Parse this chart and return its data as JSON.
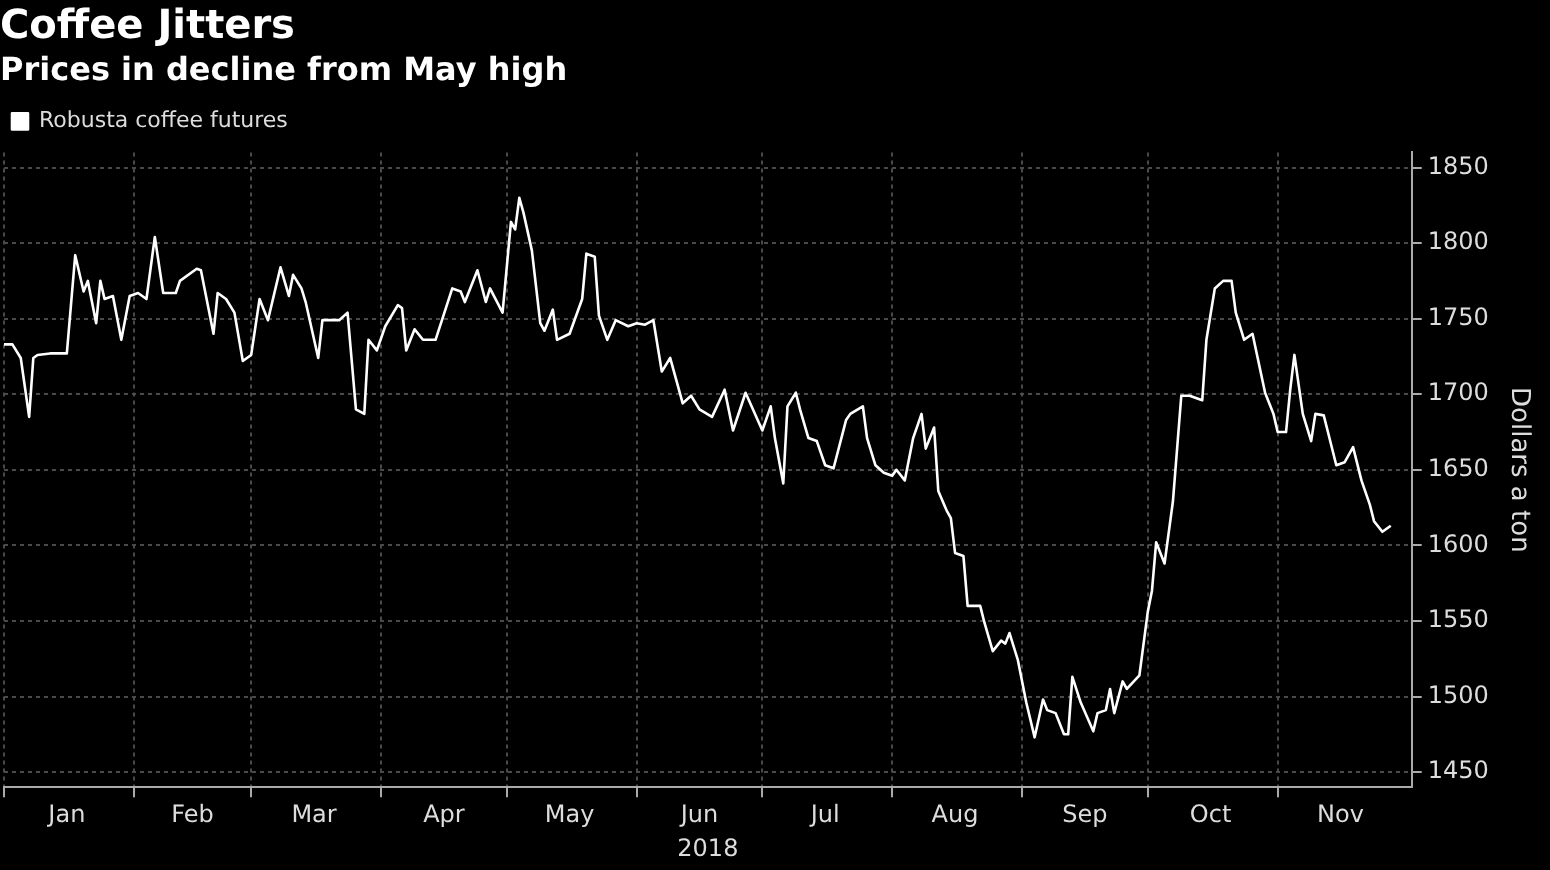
{
  "chart_data": {
    "type": "line",
    "title": "Coffee Jitters",
    "subtitle": "Prices in decline from May high",
    "ylabel": "Dollars a ton",
    "annotations": [
      "2018"
    ],
    "x": [
      "2018-01-01",
      "2018-01-03",
      "2018-01-05",
      "2018-01-07",
      "2018-01-08",
      "2018-01-09",
      "2018-01-12",
      "2018-01-16",
      "2018-01-18",
      "2018-01-20",
      "2018-01-21",
      "2018-01-23",
      "2018-01-24",
      "2018-01-25",
      "2018-01-27",
      "2018-01-29",
      "2018-01-31",
      "2018-02-02",
      "2018-02-04",
      "2018-02-06",
      "2018-02-08",
      "2018-02-11",
      "2018-02-12",
      "2018-02-16",
      "2018-02-17",
      "2018-02-20",
      "2018-02-21",
      "2018-02-23",
      "2018-02-25",
      "2018-02-27",
      "2018-03-01",
      "2018-03-03",
      "2018-03-05",
      "2018-03-08",
      "2018-03-10",
      "2018-03-11",
      "2018-03-13",
      "2018-03-14",
      "2018-03-17",
      "2018-03-18",
      "2018-03-22",
      "2018-03-24",
      "2018-03-26",
      "2018-03-28",
      "2018-03-29",
      "2018-03-31",
      "2018-04-02",
      "2018-04-05",
      "2018-04-06",
      "2018-04-07",
      "2018-04-09",
      "2018-04-11",
      "2018-04-14",
      "2018-04-18",
      "2018-04-20",
      "2018-04-21",
      "2018-04-24",
      "2018-04-26",
      "2018-04-27",
      "2018-04-30",
      "2018-05-02",
      "2018-05-03",
      "2018-05-04",
      "2018-05-05",
      "2018-05-07",
      "2018-05-09",
      "2018-05-10",
      "2018-05-12",
      "2018-05-13",
      "2018-05-16",
      "2018-05-19",
      "2018-05-20",
      "2018-05-22",
      "2018-05-23",
      "2018-05-25",
      "2018-05-27",
      "2018-05-30",
      "2018-06-01",
      "2018-06-03",
      "2018-06-05",
      "2018-06-07",
      "2018-06-09",
      "2018-06-12",
      "2018-06-14",
      "2018-06-16",
      "2018-06-19",
      "2018-06-22",
      "2018-06-24",
      "2018-06-27",
      "2018-07-01",
      "2018-07-03",
      "2018-07-04",
      "2018-07-06",
      "2018-07-07",
      "2018-07-09",
      "2018-07-10",
      "2018-07-12",
      "2018-07-14",
      "2018-07-16",
      "2018-07-18",
      "2018-07-21",
      "2018-07-22",
      "2018-07-25",
      "2018-07-26",
      "2018-07-28",
      "2018-07-30",
      "2018-08-01",
      "2018-08-02",
      "2018-08-04",
      "2018-08-06",
      "2018-08-08",
      "2018-08-09",
      "2018-08-11",
      "2018-08-12",
      "2018-08-14",
      "2018-08-15",
      "2018-08-16",
      "2018-08-18",
      "2018-08-19",
      "2018-08-22",
      "2018-08-23",
      "2018-08-25",
      "2018-08-27",
      "2018-08-28",
      "2018-08-29",
      "2018-08-31",
      "2018-09-02",
      "2018-09-04",
      "2018-09-06",
      "2018-09-07",
      "2018-09-09",
      "2018-09-11",
      "2018-09-12",
      "2018-09-13",
      "2018-09-15",
      "2018-09-18",
      "2018-09-19",
      "2018-09-21",
      "2018-09-22",
      "2018-09-23",
      "2018-09-25",
      "2018-09-26",
      "2018-09-29",
      "2018-10-01",
      "2018-10-02",
      "2018-10-03",
      "2018-10-05",
      "2018-10-07",
      "2018-10-09",
      "2018-10-11",
      "2018-10-14",
      "2018-10-15",
      "2018-10-17",
      "2018-10-19",
      "2018-10-21",
      "2018-10-22",
      "2018-10-24",
      "2018-10-26",
      "2018-10-29",
      "2018-10-31",
      "2018-11-01",
      "2018-11-03",
      "2018-11-04",
      "2018-11-05",
      "2018-11-07",
      "2018-11-09",
      "2018-11-10",
      "2018-11-12",
      "2018-11-15",
      "2018-11-17",
      "2018-11-19",
      "2018-11-21",
      "2018-11-23",
      "2018-11-24",
      "2018-11-26",
      "2018-11-28"
    ],
    "series": [
      {
        "name": "Robusta coffee futures",
        "color": "#ffffff",
        "values": [
          1733,
          1733,
          1724,
          1685,
          1724,
          1726,
          1727,
          1727,
          1792,
          1768,
          1775,
          1747,
          1775,
          1763,
          1765,
          1736,
          1765,
          1767,
          1763,
          1804,
          1767,
          1767,
          1775,
          1783,
          1782,
          1740,
          1767,
          1763,
          1754,
          1722,
          1726,
          1763,
          1749,
          1784,
          1765,
          1779,
          1770,
          1761,
          1724,
          1749,
          1749,
          1754,
          1690,
          1687,
          1736,
          1729,
          1745,
          1759,
          1757,
          1729,
          1743,
          1736,
          1736,
          1770,
          1768,
          1761,
          1782,
          1761,
          1770,
          1754,
          1814,
          1809,
          1830,
          1820,
          1795,
          1747,
          1742,
          1756,
          1736,
          1740,
          1763,
          1793,
          1791,
          1752,
          1736,
          1749,
          1745,
          1747,
          1746,
          1749,
          1715,
          1724,
          1694,
          1699,
          1690,
          1685,
          1703,
          1676,
          1701,
          1676,
          1692,
          1671,
          1641,
          1692,
          1701,
          1690,
          1671,
          1669,
          1653,
          1651,
          1683,
          1687,
          1692,
          1671,
          1653,
          1648,
          1646,
          1650,
          1643,
          1671,
          1687,
          1664,
          1678,
          1636,
          1623,
          1618,
          1595,
          1593,
          1560,
          1560,
          1549,
          1530,
          1537,
          1535,
          1542,
          1524,
          1496,
          1473,
          1498,
          1491,
          1489,
          1475,
          1475,
          1513,
          1496,
          1477,
          1489,
          1491,
          1505,
          1489,
          1510,
          1505,
          1514,
          1556,
          1570,
          1602,
          1588,
          1629,
          1699,
          1699,
          1696,
          1736,
          1770,
          1775,
          1775,
          1754,
          1736,
          1740,
          1701,
          1687,
          1675,
          1675,
          1703,
          1726,
          1687,
          1669,
          1687,
          1686,
          1653,
          1655,
          1665,
          1643,
          1627,
          1616,
          1609,
          1613
        ]
      }
    ],
    "xlim": [
      "2018-01-01",
      "2018-12-03"
    ],
    "xticks": [
      {
        "value": "2018-01-01",
        "label": null
      },
      {
        "value": "2018-01-16",
        "label": "Jan"
      },
      {
        "value": "2018-02-01",
        "label": null
      },
      {
        "value": "2018-02-15",
        "label": "Feb"
      },
      {
        "value": "2018-03-01",
        "label": null
      },
      {
        "value": "2018-03-16",
        "label": "Mar"
      },
      {
        "value": "2018-04-01",
        "label": null
      },
      {
        "value": "2018-04-16",
        "label": "Apr"
      },
      {
        "value": "2018-05-01",
        "label": null
      },
      {
        "value": "2018-05-16",
        "label": "May"
      },
      {
        "value": "2018-06-01",
        "label": null
      },
      {
        "value": "2018-06-16",
        "label": "Jun"
      },
      {
        "value": "2018-07-01",
        "label": null
      },
      {
        "value": "2018-07-16",
        "label": "Jul"
      },
      {
        "value": "2018-08-01",
        "label": null
      },
      {
        "value": "2018-08-16",
        "label": "Aug"
      },
      {
        "value": "2018-09-01",
        "label": null
      },
      {
        "value": "2018-09-16",
        "label": "Sep"
      },
      {
        "value": "2018-10-01",
        "label": null
      },
      {
        "value": "2018-10-16",
        "label": "Oct"
      },
      {
        "value": "2018-11-01",
        "label": null
      },
      {
        "value": "2018-11-16",
        "label": "Nov"
      }
    ],
    "ylim": [
      1440,
      1860
    ],
    "yticks": [
      1450,
      1500,
      1550,
      1600,
      1650,
      1700,
      1750,
      1800,
      1850
    ],
    "grid": true,
    "legend": "top left",
    "marker": "none",
    "line_style": "solid"
  }
}
